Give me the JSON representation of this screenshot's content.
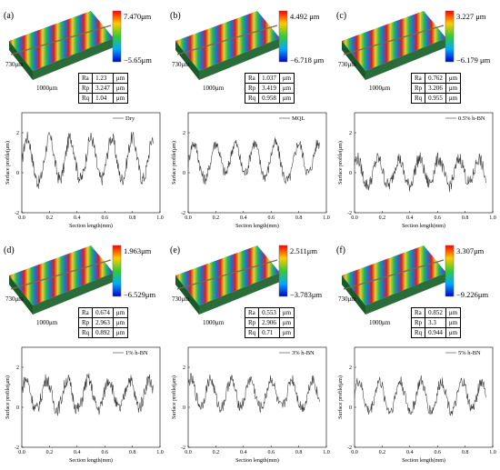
{
  "colors": {
    "trace": "#333333",
    "legend_line": "#555555"
  },
  "panels": [
    {
      "tag": "(a)",
      "cmax": "7.470μm",
      "cmin": "−5.65μm",
      "dim_y": "730μm",
      "dim_x": "1000μm",
      "table": [
        [
          "Ra",
          "1.23",
          "μm"
        ],
        [
          "Rp",
          "3.247",
          "μm"
        ],
        [
          "Rq",
          "1.04",
          "μm"
        ]
      ]
    },
    {
      "tag": "(b)",
      "cmax": "4.492 μm",
      "cmin": "−6.718 μm",
      "dim_y": "730μm",
      "dim_x": "1000μm",
      "table": [
        [
          "Ra",
          "1.037",
          "μm"
        ],
        [
          "Rp",
          "3.419",
          "μm"
        ],
        [
          "Rq",
          "0.958",
          "μm"
        ]
      ]
    },
    {
      "tag": "(c)",
      "cmax": "3.227 μm",
      "cmin": "−6.179 μm",
      "dim_y": "730μm",
      "dim_x": "1000μm",
      "table": [
        [
          "Ra",
          "0.762",
          "μm"
        ],
        [
          "Rp",
          "3.206",
          "μm"
        ],
        [
          "Rq",
          "0.955",
          "μm"
        ]
      ]
    },
    {
      "tag": "(d)",
      "cmax": "1.963μm",
      "cmin": "−6.529μm",
      "dim_y": "730μm",
      "dim_x": "1000μm",
      "table": [
        [
          "Ra",
          "0.674",
          "μm"
        ],
        [
          "Rp",
          "2.963",
          "μm"
        ],
        [
          "Rq",
          "0.892",
          "μm"
        ]
      ]
    },
    {
      "tag": "(e)",
      "cmax": "2.511μm",
      "cmin": "−3.783μm",
      "dim_y": "730μm",
      "dim_x": "1000μm",
      "table": [
        [
          "Ra",
          "0.553",
          "μm"
        ],
        [
          "Rp",
          "2.906",
          "μm"
        ],
        [
          "Rq",
          "0.71",
          "μm"
        ]
      ]
    },
    {
      "tag": "(f)",
      "cmax": "3.307μm",
      "cmin": "−9.226μm",
      "dim_y": "730μm",
      "dim_x": "1000μm",
      "table": [
        [
          "Ra",
          "0.852",
          "μm"
        ],
        [
          "Rp",
          "3.3",
          "μm"
        ],
        [
          "Rq",
          "0.944",
          "μm"
        ]
      ]
    }
  ],
  "chart_data": [
    {
      "type": "line",
      "series": [
        {
          "name": "Dry"
        }
      ],
      "xlabel": "Section length(mm)",
      "ylabel": "Surface profile(μm)",
      "xlim": [
        0,
        1.0
      ],
      "ylim": [
        -2,
        3
      ],
      "xticks": [
        "0.0",
        "0.2",
        "0.4",
        "0.6",
        "0.8",
        "1.0"
      ],
      "yticks": [
        "-2",
        "0",
        "2"
      ],
      "peaks_x": [
        0.04,
        0.2,
        0.35,
        0.5,
        0.65,
        0.8,
        0.95
      ],
      "amplitude": 1.5,
      "offset": 0.4,
      "noise": 0.35
    },
    {
      "type": "line",
      "series": [
        {
          "name": "MQL"
        }
      ],
      "xlabel": "Section length(mm)",
      "ylabel": "Surface profile(μm)",
      "xlim": [
        0,
        1.0
      ],
      "ylim": [
        -2,
        3
      ],
      "xticks": [
        "0.0",
        "0.2",
        "0.4",
        "0.6",
        "0.8",
        "1.0"
      ],
      "yticks": [
        "-2",
        "0",
        "2"
      ],
      "peaks_x": [
        0.04,
        0.2,
        0.34,
        0.48,
        0.63,
        0.8,
        0.94
      ],
      "amplitude": 1.2,
      "offset": 0.4,
      "noise": 0.3
    },
    {
      "type": "line",
      "series": [
        {
          "name": "0.5% h-BN"
        }
      ],
      "xlabel": "Section length(mm)",
      "ylabel": "Surface profile(μm)",
      "xlim": [
        0,
        1.0
      ],
      "ylim": [
        -2,
        3
      ],
      "xticks": [
        "0.0",
        "0.2",
        "0.4",
        "0.6",
        "0.8",
        "1.0"
      ],
      "yticks": [
        "-2",
        "0",
        "2"
      ],
      "peaks_x": [
        0.02,
        0.17,
        0.32,
        0.47,
        0.61,
        0.76,
        0.9
      ],
      "amplitude": 0.9,
      "offset": -0.1,
      "noise": 0.35
    },
    {
      "type": "line",
      "series": [
        {
          "name": "1% h-BN"
        }
      ],
      "xlabel": "Section length(mm)",
      "ylabel": "Surface profile(μm)",
      "xlim": [
        0,
        1.0
      ],
      "ylim": [
        -2,
        3
      ],
      "xticks": [
        "0.0",
        "0.2",
        "0.4",
        "0.6",
        "0.8",
        "1.0"
      ],
      "yticks": [
        "-2",
        "0",
        "2"
      ],
      "peaks_x": [
        0.03,
        0.18,
        0.33,
        0.48,
        0.63,
        0.78,
        0.92
      ],
      "amplitude": 1.0,
      "offset": 0.5,
      "noise": 0.35
    },
    {
      "type": "line",
      "series": [
        {
          "name": "3% h-BN"
        }
      ],
      "xlabel": "Section length(mm)",
      "ylabel": "Surface profile(μm)",
      "xlim": [
        0,
        1.0
      ],
      "ylim": [
        -2,
        3
      ],
      "xticks": [
        "0.0",
        "0.2",
        "0.4",
        "0.6",
        "0.8",
        "1.0"
      ],
      "yticks": [
        "-2",
        "0",
        "2"
      ],
      "peaks_x": [
        0.02,
        0.16,
        0.31,
        0.45,
        0.6,
        0.75,
        0.9
      ],
      "amplitude": 0.9,
      "offset": 0.6,
      "noise": 0.3
    },
    {
      "type": "line",
      "series": [
        {
          "name": "5% h-BN"
        }
      ],
      "xlabel": "Section length(mm)",
      "ylabel": "Surface profile(μm)",
      "xlim": [
        0,
        1.0
      ],
      "ylim": [
        -2,
        3
      ],
      "xticks": [
        "0.0",
        "0.2",
        "0.4",
        "0.6",
        "0.8",
        "1.0"
      ],
      "yticks": [
        "-2",
        "0",
        "2"
      ],
      "peaks_x": [
        0.03,
        0.18,
        0.33,
        0.48,
        0.63,
        0.78,
        0.92
      ],
      "amplitude": 1.0,
      "offset": 0.4,
      "noise": 0.3
    }
  ]
}
